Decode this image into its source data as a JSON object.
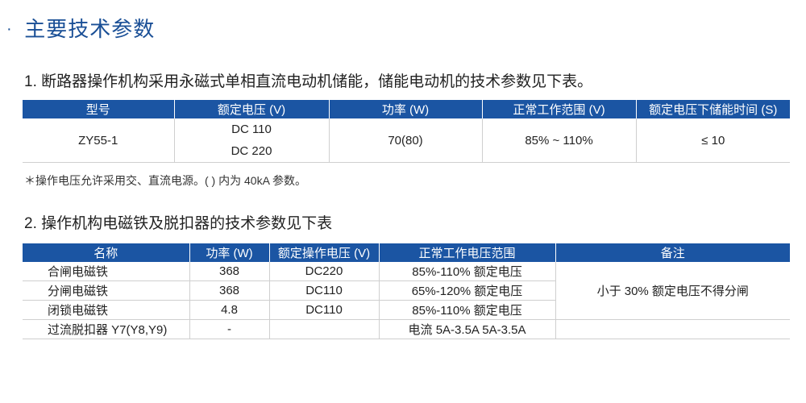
{
  "title": {
    "dot": "·",
    "text": "主要技术参数"
  },
  "section1": {
    "heading": "1. 断路器操作机构采用永磁式单相直流电动机储能，储能电动机的技术参数见下表。",
    "headers": [
      "型号",
      "额定电压 (V)",
      "功率 (W)",
      "正常工作范围 (V)",
      "额定电压下储能时间 (S)"
    ],
    "row": {
      "model": "ZY55-1",
      "voltage_lines": [
        "DC 110",
        "DC 220"
      ],
      "power": "70(80)",
      "range": "85% ~ 110%",
      "time": "≤ 10"
    },
    "note": "＊操作电压允许采用交、直流电源。( ) 内为 40kA 参数。"
  },
  "section2": {
    "heading": "2. 操作机构电磁铁及脱扣器的技术参数见下表",
    "headers": [
      "名称",
      "功率 (W)",
      "额定操作电压 (V)",
      "正常工作电压范围",
      "备注"
    ],
    "rows": [
      {
        "name": "合闸电磁铁",
        "power": "368",
        "voltage": "DC220",
        "range": "85%-110% 额定电压"
      },
      {
        "name": "分闸电磁铁",
        "power": "368",
        "voltage": "DC110",
        "range": "65%-120% 额定电压"
      },
      {
        "name": "闭锁电磁铁",
        "power": "4.8",
        "voltage": "DC110",
        "range": "85%-110% 额定电压"
      },
      {
        "name": "过流脱扣器 Y7(Y8,Y9)",
        "power": "-",
        "voltage": "",
        "range": "电流 5A-3.5A 5A-3.5A"
      }
    ],
    "remark": "小于 30% 额定电压不得分闸"
  },
  "colors": {
    "header_bg": "#1b55a3",
    "title": "#1a4f96",
    "border": "#cfcfcf"
  }
}
